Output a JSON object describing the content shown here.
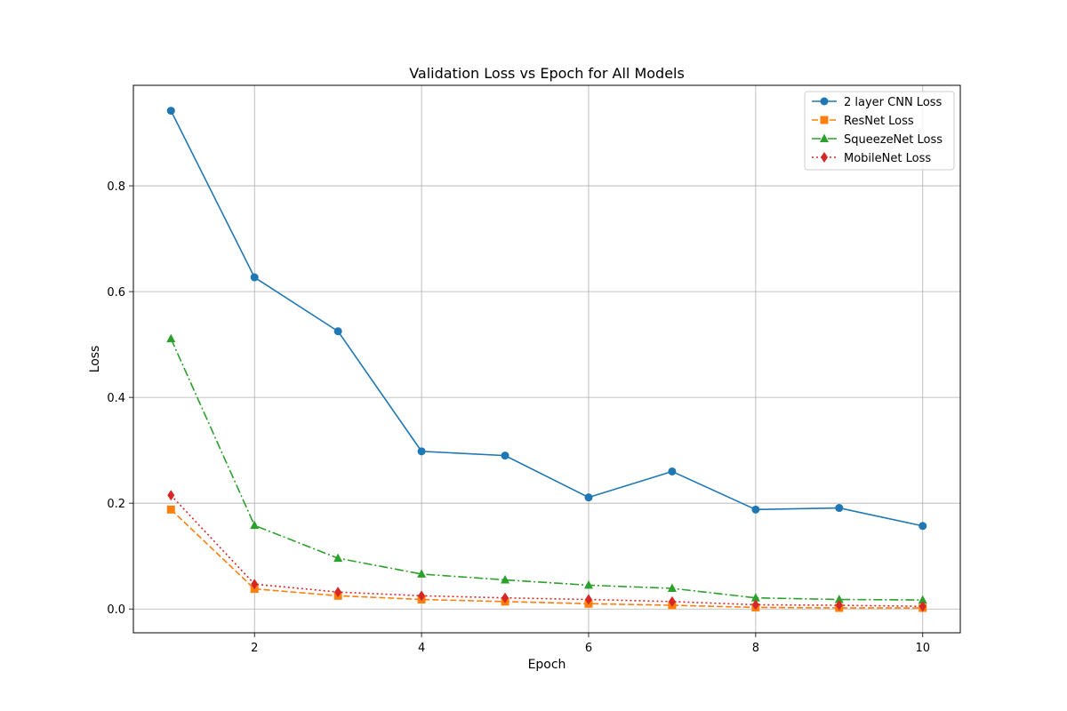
{
  "chart_data": {
    "type": "line",
    "title": "Validation Loss vs Epoch for All Models",
    "xlabel": "Epoch",
    "ylabel": "Loss",
    "x": [
      1,
      2,
      3,
      4,
      5,
      6,
      7,
      8,
      9,
      10
    ],
    "xlim": [
      0.55,
      10.45
    ],
    "ylim": [
      -0.045,
      0.99
    ],
    "xticks": [
      2,
      4,
      6,
      8,
      10
    ],
    "yticks": [
      0.0,
      0.2,
      0.4,
      0.6,
      0.8
    ],
    "xtick_labels": [
      "2",
      "4",
      "6",
      "8",
      "10"
    ],
    "ytick_labels": [
      "0.0",
      "0.2",
      "0.4",
      "0.6",
      "0.8"
    ],
    "grid": true,
    "legend_position": "top-right",
    "series": [
      {
        "name": "2 layer CNN Loss",
        "color": "#1f77b4",
        "marker": "circle",
        "linestyle": "solid",
        "values": [
          0.942,
          0.627,
          0.525,
          0.298,
          0.29,
          0.211,
          0.26,
          0.188,
          0.191,
          0.157
        ]
      },
      {
        "name": "ResNet Loss",
        "color": "#ff7f0e",
        "marker": "square",
        "linestyle": "dashed",
        "values": [
          0.188,
          0.038,
          0.025,
          0.018,
          0.014,
          0.01,
          0.007,
          0.003,
          0.002,
          0.002
        ]
      },
      {
        "name": "SqueezeNet Loss",
        "color": "#2ca02c",
        "marker": "triangle",
        "linestyle": "dashdot",
        "values": [
          0.511,
          0.158,
          0.096,
          0.066,
          0.055,
          0.045,
          0.039,
          0.021,
          0.018,
          0.017
        ]
      },
      {
        "name": "MobileNet Loss",
        "color": "#d62728",
        "marker": "diamond",
        "linestyle": "dotted",
        "values": [
          0.215,
          0.047,
          0.032,
          0.025,
          0.021,
          0.018,
          0.014,
          0.008,
          0.007,
          0.005
        ]
      }
    ]
  }
}
